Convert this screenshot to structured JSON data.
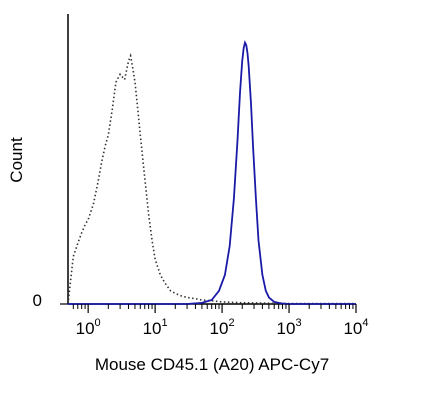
{
  "chart_data": {
    "type": "line",
    "title": "",
    "xlabel": "Mouse CD45.1 (A20) APC-Cy7",
    "ylabel": "Count",
    "x_scale": "log",
    "xlim": [
      0.5,
      10000
    ],
    "ylim": [
      0,
      1
    ],
    "x_ticks": [
      {
        "base": "10",
        "exp": "0",
        "value": 1
      },
      {
        "base": "10",
        "exp": "1",
        "value": 10
      },
      {
        "base": "10",
        "exp": "2",
        "value": 100
      },
      {
        "base": "10",
        "exp": "3",
        "value": 1000
      },
      {
        "base": "10",
        "exp": "4",
        "value": 10000
      }
    ],
    "y_ticks": [
      {
        "label": "0",
        "value": 0
      }
    ],
    "grid": false,
    "series": [
      {
        "style": "dotted",
        "color": "#333333",
        "x": [
          0.5,
          0.6,
          0.7,
          0.8,
          0.9,
          1.0,
          1.2,
          1.4,
          1.6,
          1.8,
          2.0,
          2.3,
          2.6,
          3.0,
          3.5,
          4.0,
          4.3,
          4.6,
          5.0,
          5.5,
          6.0,
          7.0,
          8.0,
          9.0,
          10,
          12,
          14,
          17,
          20,
          25,
          30,
          40,
          50,
          70,
          100,
          150,
          200,
          300,
          500,
          1000,
          10000
        ],
        "values": [
          0.0,
          0.18,
          0.23,
          0.27,
          0.3,
          0.32,
          0.38,
          0.46,
          0.54,
          0.6,
          0.64,
          0.74,
          0.84,
          0.87,
          0.85,
          0.92,
          0.94,
          0.9,
          0.84,
          0.74,
          0.64,
          0.48,
          0.34,
          0.24,
          0.17,
          0.11,
          0.08,
          0.05,
          0.04,
          0.03,
          0.025,
          0.02,
          0.015,
          0.012,
          0.008,
          0.006,
          0.005,
          0.004,
          0.003,
          0.002,
          0.002
        ]
      },
      {
        "style": "solid",
        "color": "#1a1aa8",
        "x": [
          0.5,
          30,
          50,
          70,
          90,
          110,
          130,
          150,
          170,
          185,
          200,
          210,
          220,
          230,
          240,
          250,
          270,
          290,
          320,
          350,
          400,
          450,
          500,
          600,
          700,
          800,
          1000,
          10000
        ],
        "values": [
          0.0,
          0.0,
          0.004,
          0.015,
          0.05,
          0.11,
          0.22,
          0.4,
          0.62,
          0.8,
          0.92,
          0.97,
          0.99,
          0.98,
          0.95,
          0.9,
          0.76,
          0.6,
          0.4,
          0.24,
          0.11,
          0.05,
          0.025,
          0.008,
          0.004,
          0.002,
          0.0,
          0.0
        ]
      }
    ]
  }
}
